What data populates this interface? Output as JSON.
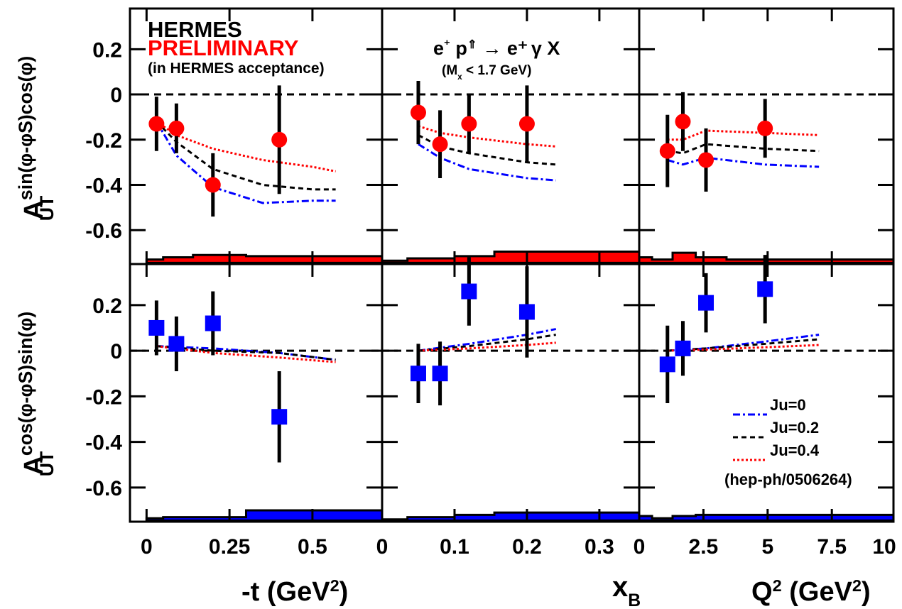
{
  "labels": {
    "collab": "HERMES",
    "status": "PRELIMINARY",
    "acceptance": "(in HERMES acceptance)",
    "reaction": "e⁺ p⇑ → e⁺ γ X",
    "cut": "(Mx < 1.7 GeV)",
    "ref": "(hep-ph/0506264)",
    "ylabel_top": "A_UT^sin(φ-φS)cos(φ)",
    "ylabel_bottom": "A_UT^cos(φ-φS)sin(φ)",
    "xlabel_t": "-t (GeV²)",
    "xlabel_xb": "xB",
    "xlabel_q2": "Q² (GeV²)"
  },
  "colors": {
    "data_top": "#ff0000",
    "data_bottom": "#0000ff",
    "model_ju0": "#0000ff",
    "model_ju02": "#000000",
    "model_ju04": "#ff0000"
  },
  "chart_data": {
    "type": "scatter",
    "y_range": {
      "top": [
        -0.75,
        0.38
      ],
      "bottom": [
        -0.75,
        0.38
      ]
    },
    "y_ticks": [
      {
        "value": 0.2,
        "label": "0.2"
      },
      {
        "value": 0,
        "label": "0"
      },
      {
        "value": -0.2,
        "label": "-0.2"
      },
      {
        "value": -0.4,
        "label": "-0.4"
      },
      {
        "value": -0.6,
        "label": "-0.6"
      }
    ],
    "legend": [
      {
        "name": "Ju=0",
        "style": "dash-dot",
        "color": "#0000ff"
      },
      {
        "name": "Ju=0.2",
        "style": "dashed",
        "color": "#000000"
      },
      {
        "name": "Ju=0.4",
        "style": "dotted",
        "color": "#ff0000"
      }
    ],
    "columns": [
      {
        "key": "t",
        "x_range": [
          -0.05,
          0.71
        ],
        "x_ticks": [
          {
            "value": 0,
            "label": "0"
          },
          {
            "value": 0.25,
            "label": "0.25"
          },
          {
            "value": 0.5,
            "label": "0.5"
          }
        ],
        "top_points": [
          {
            "x": 0.03,
            "y": -0.13,
            "err": 0.12
          },
          {
            "x": 0.09,
            "y": -0.15,
            "err": 0.11
          },
          {
            "x": 0.2,
            "y": -0.4,
            "err": 0.14
          },
          {
            "x": 0.4,
            "y": -0.2,
            "err": 0.24
          }
        ],
        "bottom_points": [
          {
            "x": 0.03,
            "y": 0.1,
            "err": 0.12
          },
          {
            "x": 0.09,
            "y": 0.03,
            "err": 0.12
          },
          {
            "x": 0.2,
            "y": 0.12,
            "err": 0.14
          },
          {
            "x": 0.4,
            "y": -0.29,
            "err": 0.2
          }
        ],
        "top_models": {
          "ju0": {
            "x": [
              0.03,
              0.09,
              0.2,
              0.35,
              0.5,
              0.57
            ],
            "y": [
              -0.12,
              -0.27,
              -0.41,
              -0.48,
              -0.47,
              -0.47
            ]
          },
          "ju02": {
            "x": [
              0.03,
              0.09,
              0.2,
              0.35,
              0.5,
              0.57
            ],
            "y": [
              -0.12,
              -0.21,
              -0.33,
              -0.4,
              -0.42,
              -0.42
            ]
          },
          "ju04": {
            "x": [
              0.03,
              0.09,
              0.2,
              0.35,
              0.5,
              0.57
            ],
            "y": [
              -0.12,
              -0.18,
              -0.24,
              -0.29,
              -0.32,
              -0.34
            ]
          }
        },
        "bottom_models": {
          "ju0": {
            "x": [
              0.03,
              0.2,
              0.4,
              0.57
            ],
            "y": [
              0.02,
              0.01,
              -0.01,
              -0.04
            ]
          },
          "ju02": {
            "x": [
              0.03,
              0.2,
              0.4,
              0.57
            ],
            "y": [
              0.02,
              0.0,
              -0.01,
              -0.04
            ]
          },
          "ju04": {
            "x": [
              0.03,
              0.2,
              0.4,
              0.57
            ],
            "y": [
              0.02,
              -0.01,
              -0.03,
              -0.05
            ]
          }
        },
        "top_band": {
          "edges": [
            0,
            0.05,
            0.14,
            0.3,
            0.71
          ],
          "values": [
            -0.73,
            -0.72,
            -0.71,
            -0.715
          ],
          "base": -0.745
        },
        "bottom_band": {
          "edges": [
            0,
            0.05,
            0.3,
            0.71
          ],
          "values": [
            -0.735,
            -0.73,
            -0.7
          ],
          "base": -0.745
        }
      },
      {
        "key": "xb",
        "x_range": [
          0,
          0.355
        ],
        "x_ticks": [
          {
            "value": 0,
            "label": "0"
          },
          {
            "value": 0.1,
            "label": "0.1"
          },
          {
            "value": 0.2,
            "label": "0.2"
          },
          {
            "value": 0.3,
            "label": "0.3"
          }
        ],
        "top_points": [
          {
            "x": 0.05,
            "y": -0.08,
            "err": 0.14
          },
          {
            "x": 0.08,
            "y": -0.22,
            "err": 0.15
          },
          {
            "x": 0.12,
            "y": -0.13,
            "err": 0.13
          },
          {
            "x": 0.2,
            "y": -0.13,
            "err": 0.17
          }
        ],
        "bottom_points": [
          {
            "x": 0.05,
            "y": -0.1,
            "err": 0.13
          },
          {
            "x": 0.08,
            "y": -0.1,
            "err": 0.14
          },
          {
            "x": 0.12,
            "y": 0.26,
            "err": 0.15
          },
          {
            "x": 0.2,
            "y": 0.17,
            "err": 0.2
          }
        ],
        "top_models": {
          "ju0": {
            "x": [
              0.05,
              0.08,
              0.12,
              0.2,
              0.24
            ],
            "y": [
              -0.22,
              -0.28,
              -0.33,
              -0.37,
              -0.38
            ]
          },
          "ju02": {
            "x": [
              0.05,
              0.08,
              0.12,
              0.2,
              0.24
            ],
            "y": [
              -0.18,
              -0.23,
              -0.26,
              -0.3,
              -0.31
            ]
          },
          "ju04": {
            "x": [
              0.05,
              0.08,
              0.12,
              0.2,
              0.24
            ],
            "y": [
              -0.14,
              -0.17,
              -0.19,
              -0.22,
              -0.23
            ]
          }
        },
        "bottom_models": {
          "ju0": {
            "x": [
              0.05,
              0.12,
              0.2,
              0.24
            ],
            "y": [
              0.0,
              0.03,
              0.07,
              0.095
            ]
          },
          "ju02": {
            "x": [
              0.05,
              0.12,
              0.2,
              0.24
            ],
            "y": [
              0.0,
              0.02,
              0.05,
              0.07
            ]
          },
          "ju04": {
            "x": [
              0.05,
              0.12,
              0.2,
              0.24
            ],
            "y": [
              0.0,
              0.01,
              0.025,
              0.035
            ]
          }
        },
        "top_band": {
          "edges": [
            0,
            0.035,
            0.1,
            0.155,
            0.355
          ],
          "values": [
            -0.735,
            -0.725,
            -0.715,
            -0.695
          ],
          "base": -0.745
        },
        "bottom_band": {
          "edges": [
            0,
            0.035,
            0.1,
            0.155,
            0.355
          ],
          "values": [
            -0.74,
            -0.73,
            -0.72,
            -0.71
          ],
          "base": -0.745
        }
      },
      {
        "key": "q2",
        "x_range": [
          0,
          9.9
        ],
        "x_ticks": [
          {
            "value": 0,
            "label": "0"
          },
          {
            "value": 2.5,
            "label": "2.5"
          },
          {
            "value": 5,
            "label": "5"
          },
          {
            "value": 7.5,
            "label": "7.5"
          },
          {
            "value": 10,
            "label": "10"
          }
        ],
        "top_points": [
          {
            "x": 1.1,
            "y": -0.25,
            "err": 0.16
          },
          {
            "x": 1.7,
            "y": -0.12,
            "err": 0.13
          },
          {
            "x": 2.6,
            "y": -0.29,
            "err": 0.14
          },
          {
            "x": 4.9,
            "y": -0.15,
            "err": 0.13
          }
        ],
        "bottom_points": [
          {
            "x": 1.1,
            "y": -0.06,
            "err": 0.17
          },
          {
            "x": 1.7,
            "y": 0.01,
            "err": 0.12
          },
          {
            "x": 2.6,
            "y": 0.21,
            "err": 0.13
          },
          {
            "x": 4.9,
            "y": 0.27,
            "err": 0.15
          }
        ],
        "top_models": {
          "ju0": {
            "x": [
              1.1,
              1.7,
              2.6,
              4.9,
              7.0
            ],
            "y": [
              -0.29,
              -0.31,
              -0.28,
              -0.31,
              -0.32
            ]
          },
          "ju02": {
            "x": [
              1.1,
              1.7,
              2.6,
              4.9,
              7.0
            ],
            "y": [
              -0.25,
              -0.26,
              -0.22,
              -0.24,
              -0.25
            ]
          },
          "ju04": {
            "x": [
              1.1,
              1.7,
              2.6,
              4.9,
              7.0
            ],
            "y": [
              -0.2,
              -0.2,
              -0.16,
              -0.17,
              -0.18
            ]
          }
        },
        "bottom_models": {
          "ju0": {
            "x": [
              1.1,
              2.6,
              4.9,
              7.0
            ],
            "y": [
              0.0,
              0.01,
              0.04,
              0.07
            ]
          },
          "ju02": {
            "x": [
              1.1,
              2.6,
              4.9,
              7.0
            ],
            "y": [
              0.0,
              0.01,
              0.03,
              0.05
            ]
          },
          "ju04": {
            "x": [
              1.1,
              2.6,
              4.9,
              7.0
            ],
            "y": [
              0.0,
              0.005,
              0.015,
              0.025
            ]
          }
        },
        "top_band": {
          "edges": [
            0,
            0.5,
            1.3,
            2.2,
            3.4,
            9.9
          ],
          "values": [
            -0.72,
            -0.73,
            -0.7,
            -0.72,
            -0.73
          ],
          "base": -0.745
        },
        "bottom_band": {
          "edges": [
            0,
            0.5,
            1.3,
            2.2,
            3.4,
            9.9
          ],
          "values": [
            -0.725,
            -0.735,
            -0.725,
            -0.72,
            -0.72
          ],
          "base": -0.745
        }
      }
    ]
  }
}
